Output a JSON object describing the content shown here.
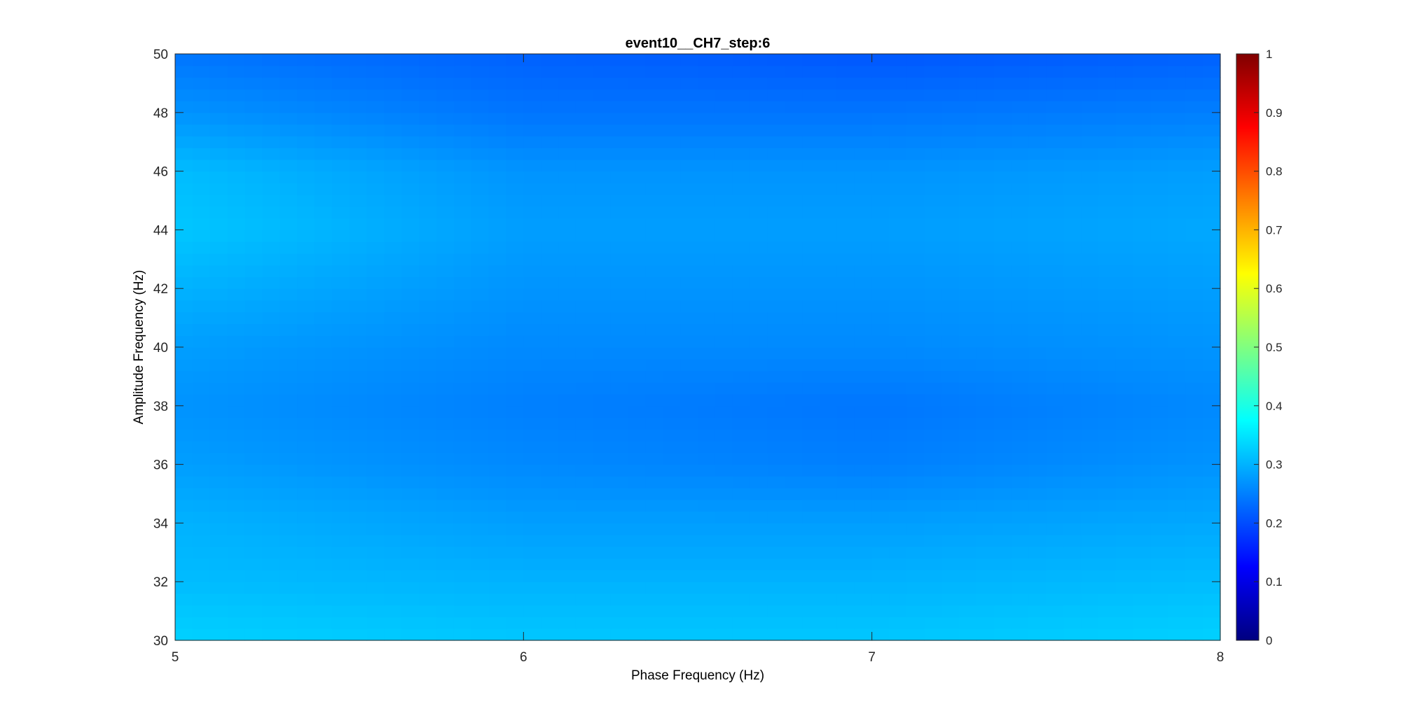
{
  "chart_data": {
    "type": "heatmap",
    "title": "event10__CH7_step:6",
    "xlabel": "Phase Frequency (Hz)",
    "ylabel": "Amplitude Frequency (Hz)",
    "xlim": [
      5,
      8
    ],
    "ylim": [
      30,
      50
    ],
    "x_ticks": [
      "5",
      "6",
      "7",
      "8"
    ],
    "y_ticks": [
      "30",
      "32",
      "34",
      "36",
      "38",
      "40",
      "42",
      "44",
      "46",
      "48",
      "50"
    ],
    "colormap": "jet",
    "clim": [
      0,
      1
    ],
    "colorbar_ticks": [
      "0",
      "0.1",
      "0.2",
      "0.3",
      "0.4",
      "0.5",
      "0.6",
      "0.7",
      "0.8",
      "0.9",
      "1"
    ],
    "x": [
      5,
      6,
      7,
      8
    ],
    "y": [
      30,
      32,
      34,
      36,
      38,
      40,
      42,
      44,
      46,
      48,
      50
    ],
    "z": [
      [
        0.33,
        0.32,
        0.32,
        0.33
      ],
      [
        0.31,
        0.3,
        0.3,
        0.31
      ],
      [
        0.3,
        0.28,
        0.28,
        0.29
      ],
      [
        0.28,
        0.26,
        0.25,
        0.27
      ],
      [
        0.27,
        0.25,
        0.24,
        0.26
      ],
      [
        0.28,
        0.26,
        0.26,
        0.27
      ],
      [
        0.3,
        0.27,
        0.27,
        0.28
      ],
      [
        0.32,
        0.28,
        0.28,
        0.29
      ],
      [
        0.31,
        0.27,
        0.27,
        0.28
      ],
      [
        0.27,
        0.24,
        0.24,
        0.25
      ],
      [
        0.24,
        0.22,
        0.21,
        0.22
      ]
    ]
  }
}
